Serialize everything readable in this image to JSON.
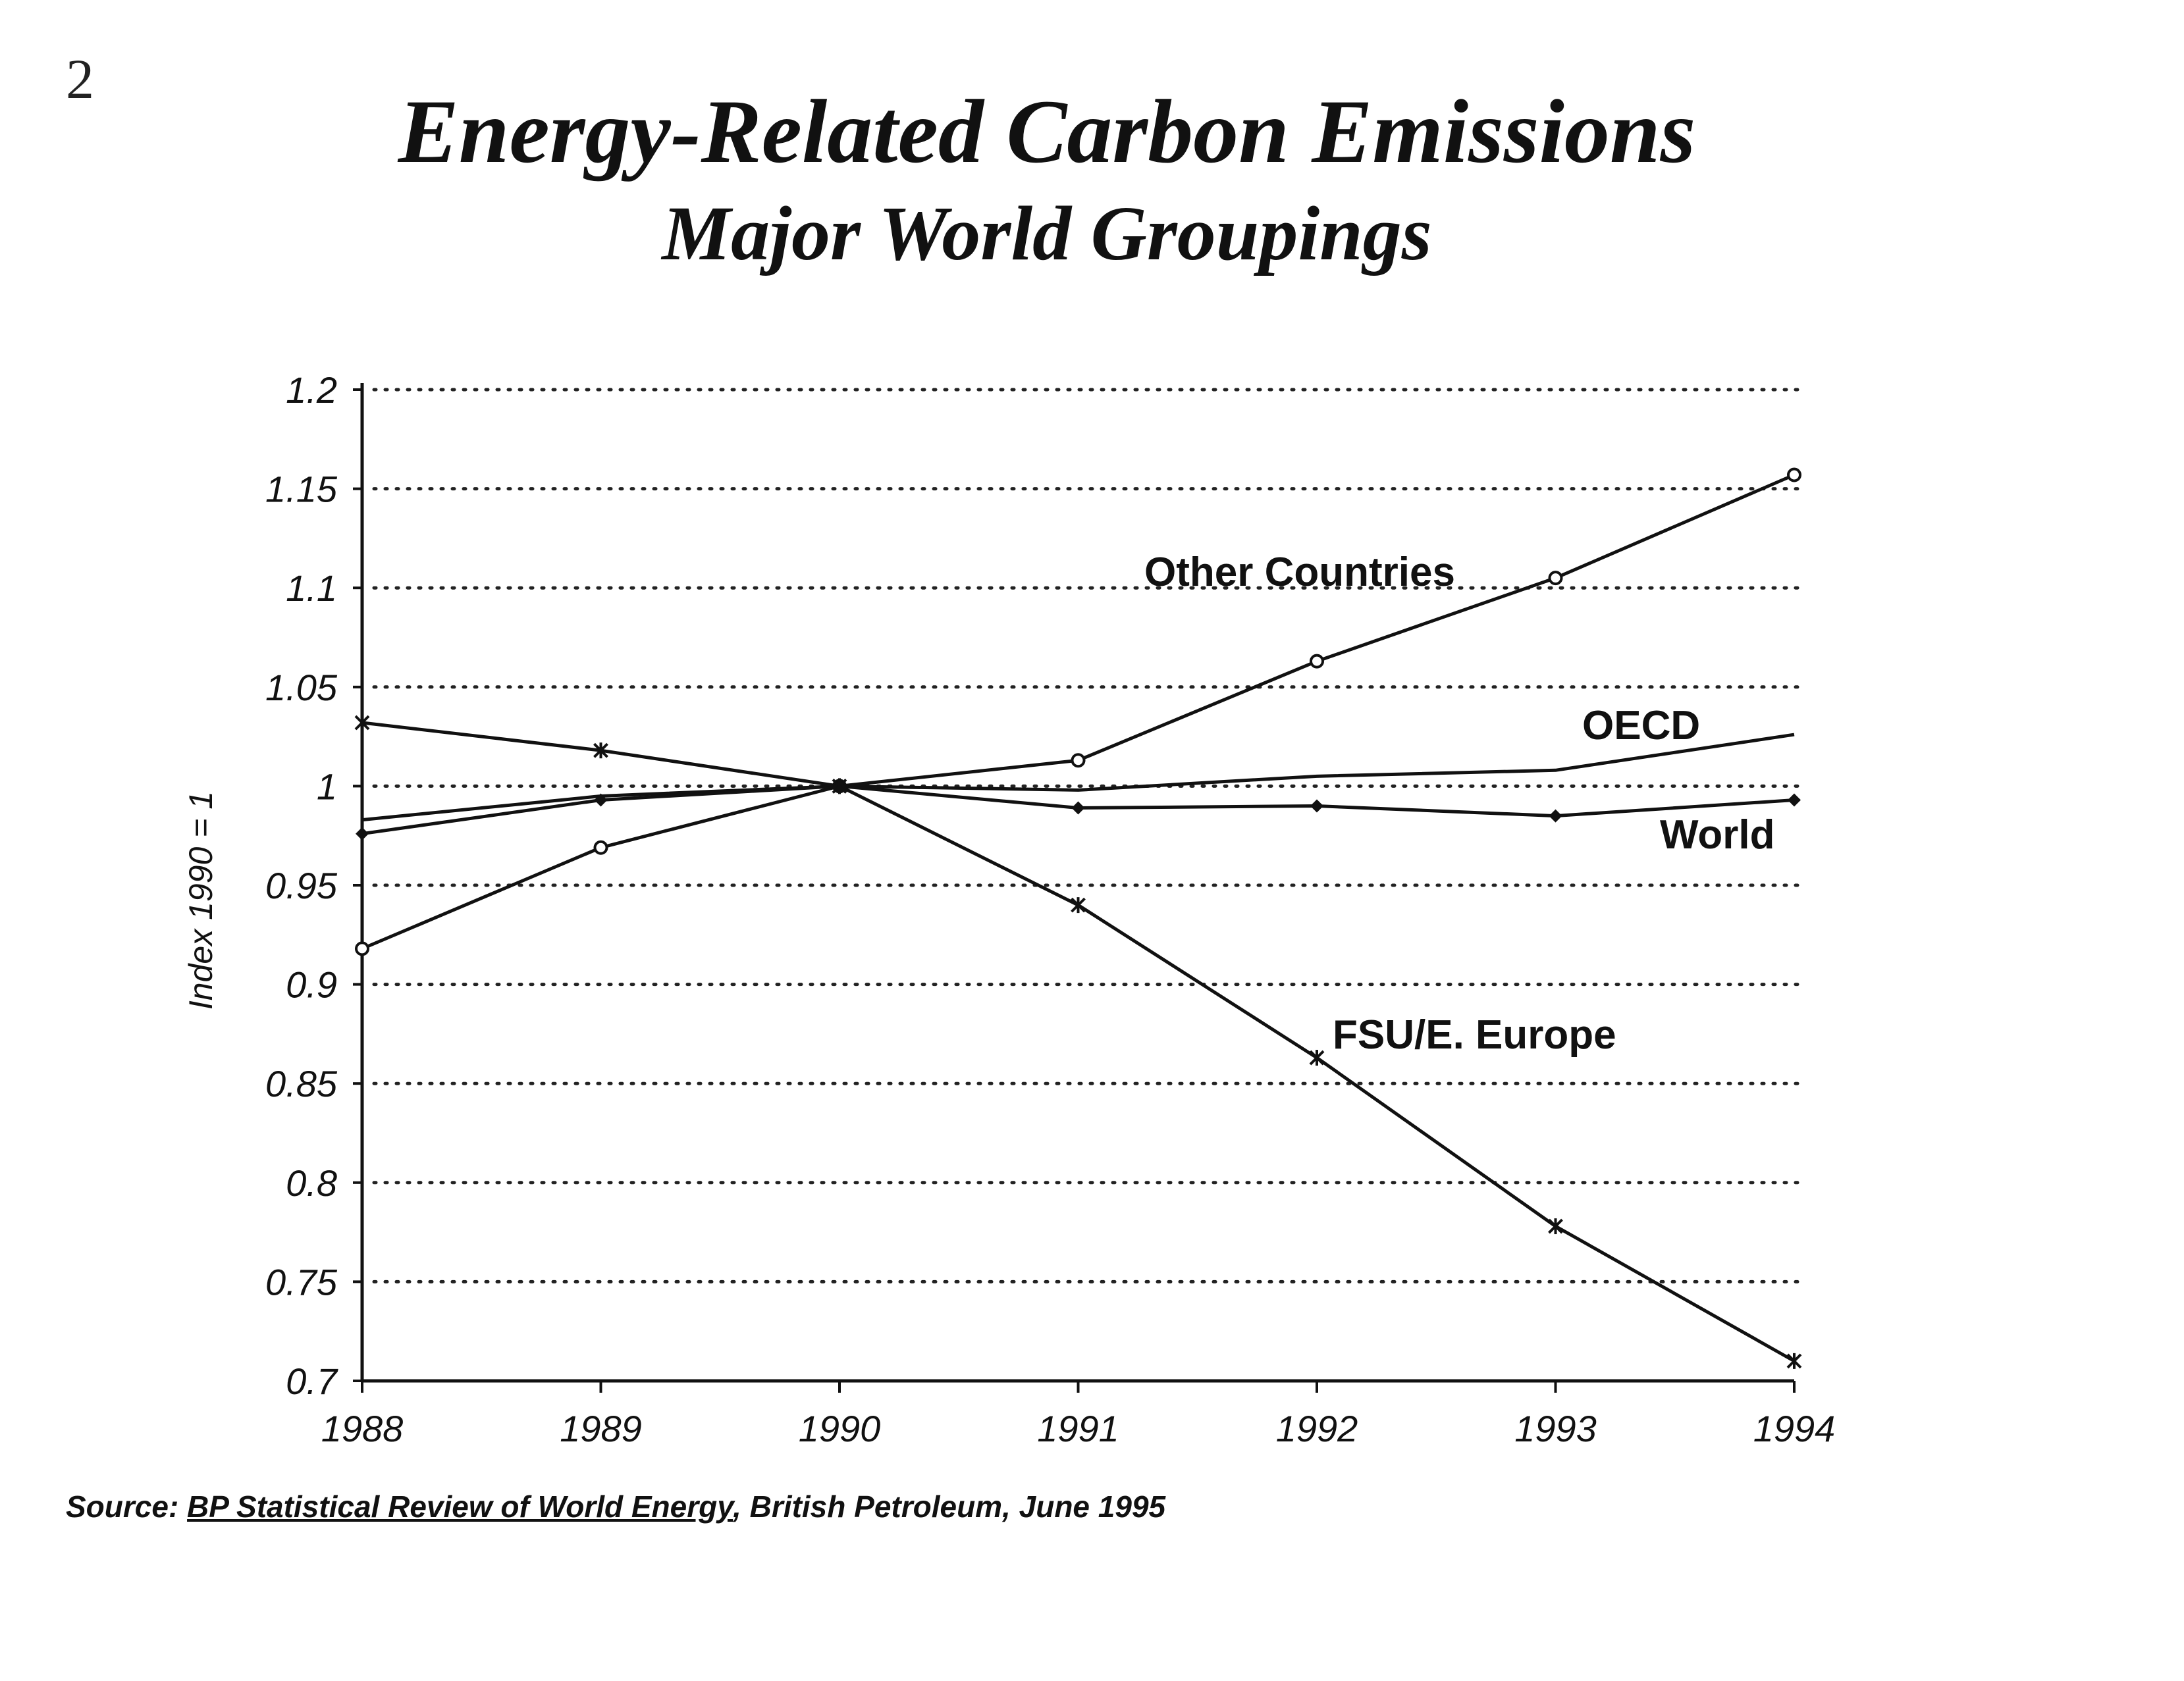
{
  "page_number": "2",
  "source": {
    "prefix": "Source: ",
    "reference": "BP Statistical Review of World Energy",
    "suffix": ", British Petroleum, June 1995"
  },
  "chart_data": {
    "type": "line",
    "title": "Energy-Related Carbon Emissions",
    "subtitle": "Major World Groupings",
    "ylabel": "Index 1990 = 1",
    "xlabel": "",
    "x": [
      "1988",
      "1989",
      "1990",
      "1991",
      "1992",
      "1993",
      "1994"
    ],
    "ylim": [
      0.7,
      1.2
    ],
    "yticks": [
      "0.7",
      "0.75",
      "0.8",
      "0.85",
      "0.9",
      "0.95",
      "1",
      "1.05",
      "1.1",
      "1.15",
      "1.2"
    ],
    "grid": "horizontal dotted",
    "series": [
      {
        "name": "Other Countries",
        "marker": "open-circle",
        "values": [
          0.918,
          0.969,
          1.0,
          1.013,
          1.063,
          1.105,
          1.157
        ]
      },
      {
        "name": "OECD",
        "marker": "none",
        "values": [
          0.983,
          0.995,
          1.0,
          0.998,
          1.005,
          1.008,
          1.026
        ]
      },
      {
        "name": "World",
        "marker": "filled-diamond",
        "values": [
          0.976,
          0.993,
          1.0,
          0.989,
          0.99,
          0.985,
          0.993
        ]
      },
      {
        "name": "FSU/E. Europe",
        "marker": "star-x",
        "values": [
          1.032,
          1.018,
          1.0,
          0.94,
          0.863,
          0.778,
          0.71
        ]
      }
    ],
    "colors": {
      "line": "#111111",
      "grid": "#222222",
      "background": "#ffffff"
    }
  }
}
